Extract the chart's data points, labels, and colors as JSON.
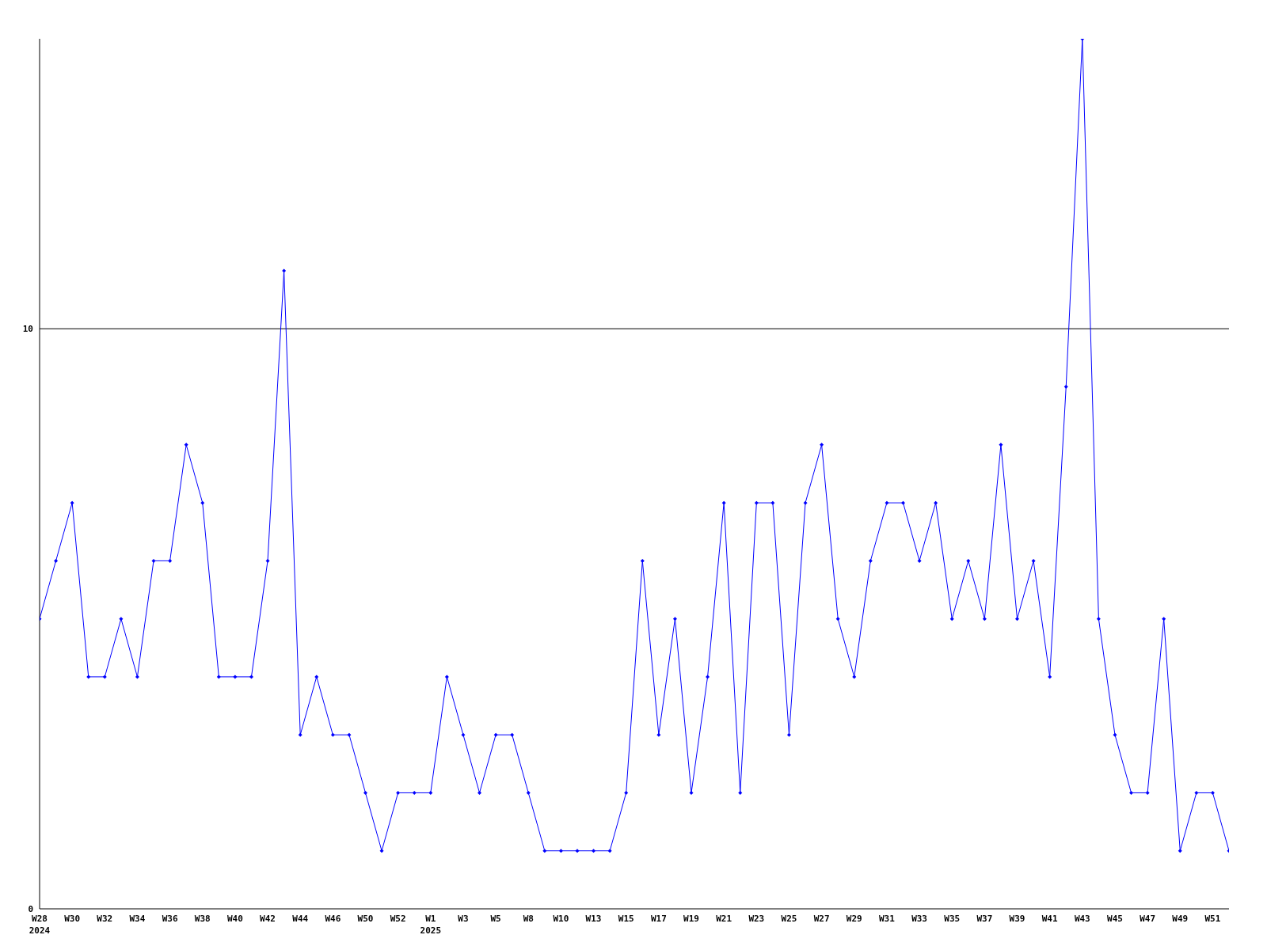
{
  "chart_data": {
    "type": "line",
    "categories": [
      "W28\n2024",
      null,
      "W30",
      null,
      "W32",
      null,
      "W34",
      null,
      "W36",
      null,
      "W38",
      null,
      "W40",
      null,
      "W42",
      null,
      "W44",
      null,
      "W46",
      null,
      "W50",
      null,
      "W52",
      null,
      "W1\n2025",
      null,
      "W3",
      null,
      "W5",
      null,
      "W8",
      null,
      "W10",
      null,
      "W13",
      null,
      "W15",
      null,
      "W17",
      null,
      "W19",
      null,
      "W21",
      null,
      "W23",
      null,
      "W25",
      null,
      "W27",
      null,
      "W29",
      null,
      "W31",
      null,
      "W33",
      null,
      "W35",
      null,
      "W37",
      null,
      "W39",
      null,
      "W41",
      null,
      "W43",
      null,
      "W45",
      null,
      "W47",
      null,
      "W49",
      null,
      "W51",
      null
    ],
    "series": [
      {
        "color": "#0000ff",
        "values": [
          5,
          6,
          7,
          4,
          4,
          5,
          4,
          6,
          6,
          8,
          7,
          4,
          4,
          4,
          6,
          11,
          3,
          4,
          3,
          3,
          2,
          1,
          2,
          2,
          2,
          4,
          3,
          2,
          3,
          3,
          2,
          1,
          1,
          1,
          1,
          1,
          2,
          6,
          3,
          5,
          2,
          4,
          7,
          2,
          7,
          7,
          3,
          7,
          8,
          5,
          4,
          6,
          7,
          7,
          6,
          7,
          5,
          6,
          5,
          8,
          5,
          6,
          4,
          9,
          15,
          5,
          3,
          2,
          2,
          5,
          1,
          2,
          2,
          1
        ]
      }
    ],
    "ylim": [
      0,
      15
    ],
    "yticks": [
      0,
      10
    ],
    "grid": "y",
    "marker": "diamond",
    "line_style": "solid"
  }
}
